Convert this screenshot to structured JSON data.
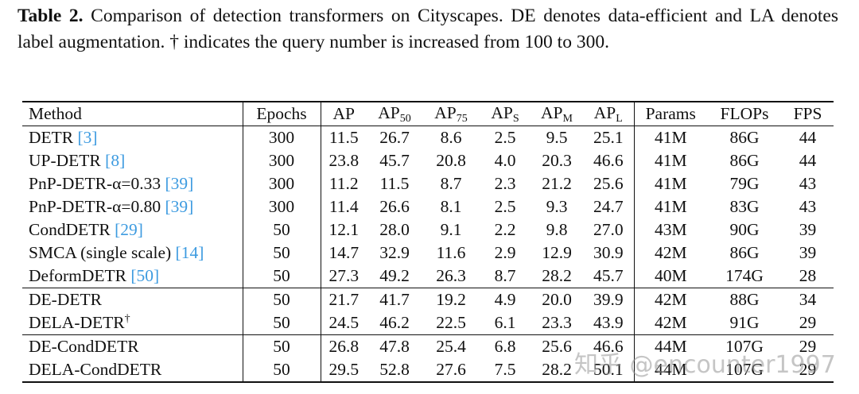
{
  "caption": {
    "label": "Table 2.",
    "text": "Comparison of detection transformers on Cityscapes. DE denotes data-efficient and LA denotes label augmentation. † indicates the query number is increased from 100 to 300."
  },
  "table": {
    "header": [
      {
        "text": "Method"
      },
      {
        "text": "Epochs"
      },
      {
        "text": "AP"
      },
      {
        "text": "AP",
        "sub": "50"
      },
      {
        "text": "AP",
        "sub": "75"
      },
      {
        "text": "AP",
        "sub": "S"
      },
      {
        "text": "AP",
        "sub": "M"
      },
      {
        "text": "AP",
        "sub": "L"
      },
      {
        "text": "Params"
      },
      {
        "text": "FLOPs"
      },
      {
        "text": "FPS"
      }
    ],
    "groups": [
      [
        {
          "method": {
            "name": "DETR",
            "cite": "[3]"
          },
          "values": [
            "300",
            "11.5",
            "26.7",
            "8.6",
            "2.5",
            "9.5",
            "25.1",
            "41M",
            "86G",
            "44"
          ]
        },
        {
          "method": {
            "name": "UP-DETR",
            "cite": "[8]"
          },
          "values": [
            "300",
            "23.8",
            "45.7",
            "20.8",
            "4.0",
            "20.3",
            "46.6",
            "41M",
            "86G",
            "44"
          ]
        },
        {
          "method": {
            "name": "PnP-DETR-α=0.33",
            "cite": "[39]"
          },
          "values": [
            "300",
            "11.2",
            "11.5",
            "8.7",
            "2.3",
            "21.2",
            "25.6",
            "41M",
            "79G",
            "43"
          ]
        },
        {
          "method": {
            "name": "PnP-DETR-α=0.80",
            "cite": "[39]"
          },
          "values": [
            "300",
            "11.4",
            "26.6",
            "8.1",
            "2.5",
            "9.3",
            "24.7",
            "41M",
            "83G",
            "43"
          ]
        },
        {
          "method": {
            "name": "CondDETR",
            "cite": "[29]"
          },
          "values": [
            "50",
            "12.1",
            "28.0",
            "9.1",
            "2.2",
            "9.8",
            "27.0",
            "43M",
            "90G",
            "39"
          ]
        },
        {
          "method": {
            "name": "SMCA (single scale)",
            "cite": "[14]"
          },
          "values": [
            "50",
            "14.7",
            "32.9",
            "11.6",
            "2.9",
            "12.9",
            "30.9",
            "42M",
            "86G",
            "39"
          ]
        },
        {
          "method": {
            "name": "DeformDETR",
            "cite": "[50]"
          },
          "values": [
            "50",
            "27.3",
            "49.2",
            "26.3",
            "8.7",
            "28.2",
            "45.7",
            "40M",
            "174G",
            "28"
          ]
        }
      ],
      [
        {
          "method": {
            "name": "DE-DETR"
          },
          "values": [
            "50",
            "21.7",
            "41.7",
            "19.2",
            "4.9",
            "20.0",
            "39.9",
            "42M",
            "88G",
            "34"
          ]
        },
        {
          "method": {
            "name": "DELA-DETR",
            "sup": "†"
          },
          "values": [
            "50",
            "24.5",
            "46.2",
            "22.5",
            "6.1",
            "23.3",
            "43.9",
            "42M",
            "91G",
            "29"
          ]
        }
      ],
      [
        {
          "method": {
            "name": "DE-CondDETR"
          },
          "values": [
            "50",
            "26.8",
            "47.8",
            "25.4",
            "6.8",
            "25.6",
            "46.6",
            "44M",
            "107G",
            "29"
          ]
        },
        {
          "method": {
            "name": "DELA-CondDETR"
          },
          "values": [
            "50",
            "29.5",
            "52.8",
            "27.6",
            "7.5",
            "28.2",
            "50.1",
            "44M",
            "107G",
            "29"
          ]
        }
      ]
    ]
  },
  "watermark": "知乎 @encounter1997"
}
